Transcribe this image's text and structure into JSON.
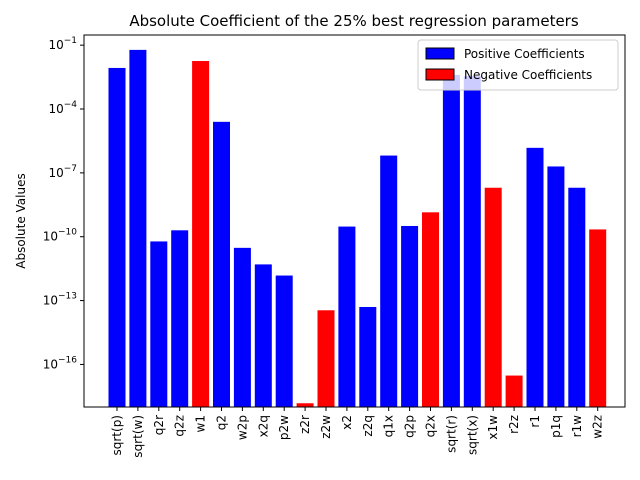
{
  "chart_data": {
    "type": "bar",
    "title": "Absolute Coefficient of the 25% best regression parameters",
    "xlabel": "",
    "ylabel": "Absolute Values",
    "yscale": "log",
    "ylim": [
      1e-18,
      0.3
    ],
    "yticks": [
      {
        "value": 0.1,
        "base": "10",
        "exp": "−1"
      },
      {
        "value": 0.0001,
        "base": "10",
        "exp": "−4"
      },
      {
        "value": 1e-07,
        "base": "10",
        "exp": "−7"
      },
      {
        "value": 1e-10,
        "base": "10",
        "exp": "−10"
      },
      {
        "value": 1e-13,
        "base": "10",
        "exp": "−13"
      },
      {
        "value": 1e-16,
        "base": "10",
        "exp": "−16"
      }
    ],
    "categories": [
      "sqrt(p)",
      "sqrt(w)",
      "q2r",
      "q2z",
      "w1",
      "q2",
      "w2p",
      "x2q",
      "p2w",
      "z2r",
      "z2w",
      "x2",
      "z2q",
      "q1x",
      "q2p",
      "q2x",
      "sqrt(r)",
      "sqrt(x)",
      "x1w",
      "r2z",
      "r1",
      "p1q",
      "r1w",
      "w2z"
    ],
    "values": [
      0.0085,
      0.06,
      6e-11,
      2e-10,
      0.018,
      2.5e-05,
      3e-11,
      5e-12,
      1.5e-12,
      1.5e-18,
      3.5e-14,
      3e-10,
      5e-14,
      6.5e-07,
      3.2e-10,
      1.4e-09,
      0.004,
      0.0035,
      2e-08,
      3e-17,
      1.5e-06,
      2e-07,
      2e-08,
      2.2e-10
    ],
    "signs": [
      "+",
      "+",
      "+",
      "+",
      "-",
      "+",
      "+",
      "+",
      "+",
      "-",
      "-",
      "+",
      "+",
      "+",
      "+",
      "-",
      "+",
      "+",
      "-",
      "-",
      "+",
      "+",
      "+",
      "-"
    ],
    "legend": {
      "position": "top-right",
      "entries": [
        {
          "label": "Positive Coefficients",
          "color": "#0000ff"
        },
        {
          "label": "Negative Coefficients",
          "color": "#ff0000"
        }
      ]
    },
    "colors": {
      "positive": "#0000ff",
      "negative": "#ff0000"
    },
    "grid": false
  }
}
